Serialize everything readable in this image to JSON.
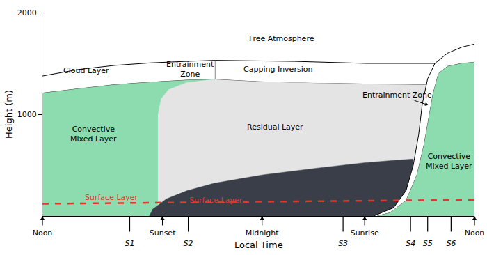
{
  "chart_data": {
    "type": "area",
    "xlabel": "Local Time",
    "ylabel": "Height (m)",
    "xlim": [
      0,
      24
    ],
    "ylim": [
      0,
      2000
    ],
    "grid": false,
    "xticks": [
      {
        "value": 0,
        "label": "Noon"
      },
      {
        "value": 4.85,
        "label": "S1"
      },
      {
        "value": 6.67,
        "label": "Sunset"
      },
      {
        "value": 8.1,
        "label": "S2"
      },
      {
        "value": 12.2,
        "label": "Midnight"
      },
      {
        "value": 16.7,
        "label": "S3"
      },
      {
        "value": 17.9,
        "label": "Sunrise"
      },
      {
        "value": 20.45,
        "label": "S4"
      },
      {
        "value": 21.4,
        "label": "S5"
      },
      {
        "value": 22.7,
        "label": "S6"
      },
      {
        "value": 24,
        "label": "Noon"
      }
    ],
    "yticks": [
      1000,
      2000
    ],
    "series": [
      {
        "type": "area",
        "color": "#ffffff",
        "line_style": "solid",
        "x": [
          0,
          2,
          4,
          6,
          8,
          9.6,
          9.6,
          8,
          6,
          4,
          2,
          0
        ],
        "y": [
          1376,
          1440,
          1480,
          1505,
          1520,
          1530,
          1342,
          1335,
          1315,
          1290,
          1250,
          1208
        ]
      },
      {
        "type": "area",
        "color": "#ffffff",
        "line_style": "solid",
        "x": [
          9.6,
          14,
          18,
          21.8,
          21.33,
          18,
          15,
          12,
          9.6
        ],
        "y": [
          1530,
          1520,
          1500,
          1500,
          1289,
          1295,
          1305,
          1320,
          1342
        ]
      },
      {
        "type": "area",
        "color": "#8ddcb0",
        "line_style": "none",
        "x": [
          0,
          0,
          2,
          4,
          6,
          8,
          9.54,
          8,
          7,
          6.6,
          6.43,
          6.43
        ],
        "y": [
          0,
          1208,
          1250,
          1290,
          1315,
          1335,
          1342,
          1310,
          1240,
          1150,
          1000,
          0
        ]
      },
      {
        "type": "area",
        "color": "#e4e4e4",
        "line_style": "none",
        "x": [
          6.43,
          6.43,
          6.6,
          7,
          8,
          9.54,
          12,
          15,
          18,
          21.33,
          21.1,
          20.9,
          20.6,
          20.2,
          19.5,
          18.4
        ],
        "y": [
          0,
          1000,
          1150,
          1240,
          1310,
          1342,
          1320,
          1305,
          1295,
          1289,
          1100,
          800,
          500,
          250,
          80,
          0
        ]
      },
      {
        "type": "area",
        "color": "#393e48",
        "line_style": "none",
        "x": [
          5.94,
          6.13,
          6.89,
          8.02,
          9.54,
          12.19,
          15.22,
          17.87,
          19.76,
          20.6,
          20.6
        ],
        "y": [
          0,
          67,
          168,
          248,
          322,
          403,
          470,
          523,
          550,
          560,
          0
        ]
      },
      {
        "type": "area",
        "color": "#ffffff",
        "line_style": "solid",
        "x": [
          18.4,
          19.5,
          20.2,
          20.6,
          20.9,
          21.1,
          21.4,
          21.8,
          22.5,
          23.3,
          24,
          24,
          23.3,
          22.5,
          22.0,
          21.7,
          21.5,
          21.2,
          20.8,
          20.2,
          19.3,
          18.6
        ],
        "y": [
          0,
          80,
          250,
          500,
          800,
          1100,
          1350,
          1500,
          1600,
          1660,
          1690,
          1510,
          1500,
          1470,
          1400,
          1200,
          1000,
          700,
          400,
          150,
          30,
          0
        ]
      },
      {
        "type": "area",
        "color": "#8ddcb0",
        "line_style": "none",
        "x": [
          18.6,
          19.3,
          20.2,
          20.8,
          21.2,
          21.5,
          21.7,
          22.0,
          22.5,
          23.3,
          24,
          24
        ],
        "y": [
          0,
          30,
          150,
          400,
          700,
          1000,
          1200,
          1400,
          1470,
          1500,
          1510,
          0
        ]
      },
      {
        "type": "line",
        "color": "#e8352a",
        "line_style": "dashed",
        "x": [
          0,
          24
        ],
        "y": [
          120,
          160
        ]
      }
    ],
    "annotations": [
      {
        "text": "Free Atmosphere",
        "x": 13.3,
        "y": 1745
      },
      {
        "text": "Cloud Layer",
        "x": 2.42,
        "y": 1430
      },
      {
        "text": "Entrainment\nZone",
        "x": 8.2,
        "y": 1440
      },
      {
        "text": "Capping Inversion",
        "x": 13.1,
        "y": 1443
      },
      {
        "text": "Convective\nMixed Layer",
        "x": 2.84,
        "y": 805
      },
      {
        "text": "Residual Layer",
        "x": 12.94,
        "y": 872
      },
      {
        "text": "Entrainment Zone",
        "x": 19.7,
        "y": 1190,
        "arrow_x": 21.45,
        "arrow_y": 1090
      },
      {
        "text": "Convective\nMixed Layer",
        "x": 22.6,
        "y": 537
      },
      {
        "text": "Surface Layer",
        "x": 3.86,
        "y": 181,
        "color": "#e8352a"
      },
      {
        "text": "Surface Layer",
        "x": 9.65,
        "y": 154,
        "color": "#e8352a"
      }
    ]
  }
}
